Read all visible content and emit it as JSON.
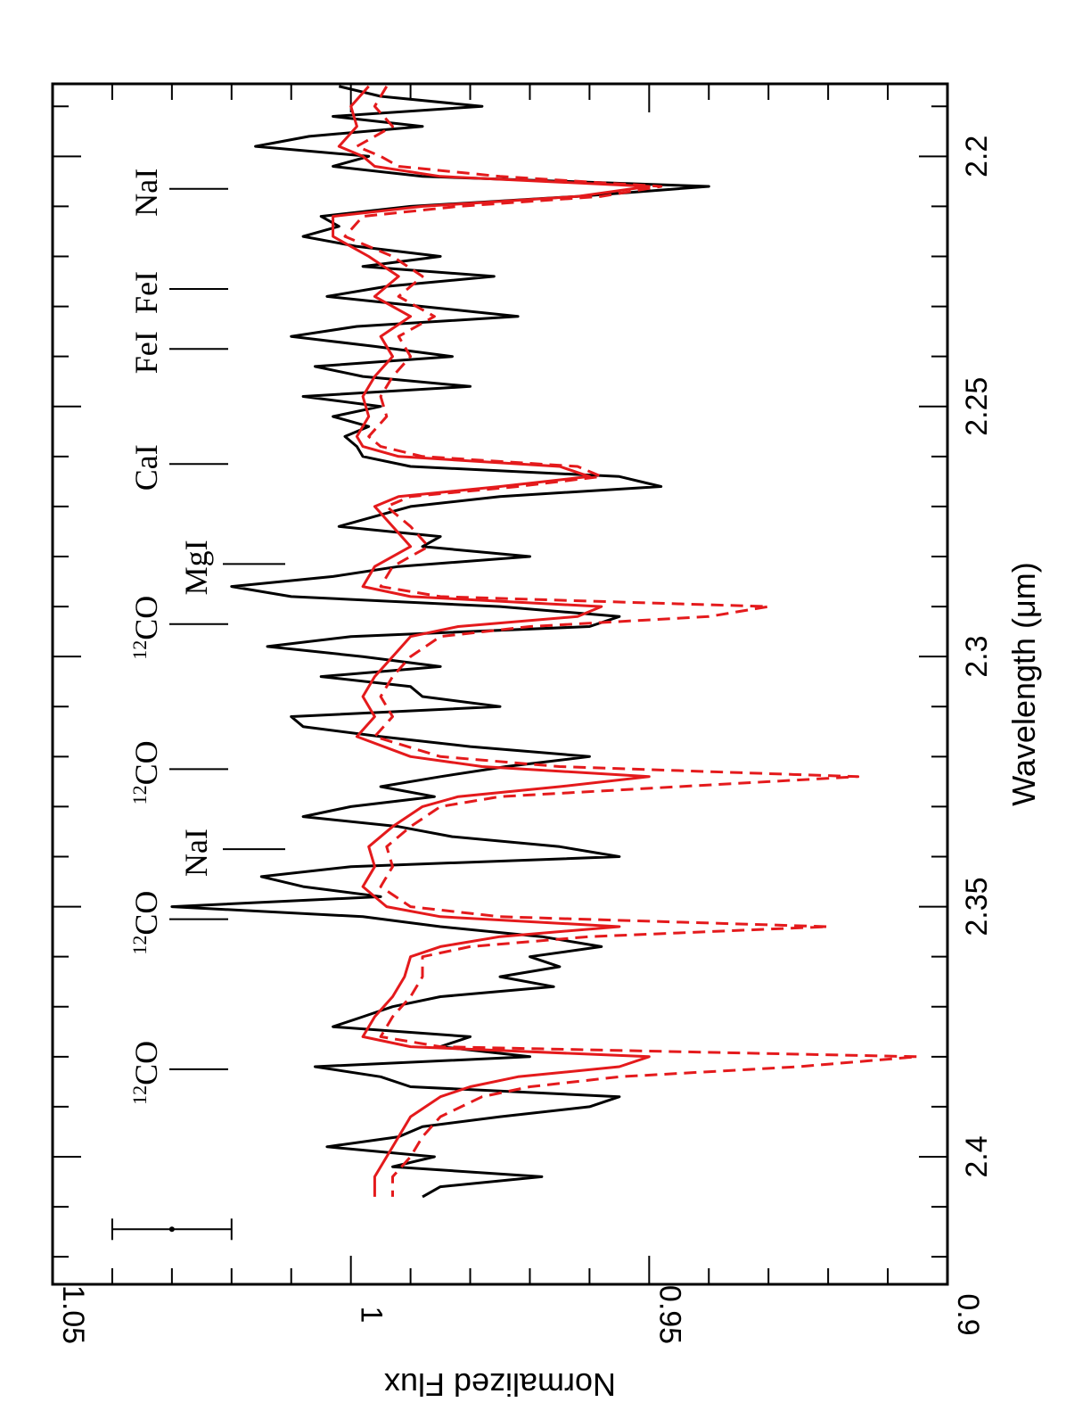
{
  "chart_data": {
    "type": "line",
    "title": "",
    "xlabel": "Wavelength (μm)",
    "ylabel": "Normalized Flux",
    "xlim": [
      2.1855,
      2.4255
    ],
    "ylim": [
      0.9,
      1.05
    ],
    "x_ticks": [
      "2.2",
      "2.25",
      "2.3",
      "2.35",
      "2.4"
    ],
    "y_ticks": [
      "0.9",
      "0.95",
      "1",
      "1.05"
    ],
    "orientation": "rotated 90 degrees (wavelength increases downward, flux decreases to the right)",
    "series": [
      {
        "style": "solid",
        "color": "#000000",
        "x": [
          2.186,
          2.188,
          2.19,
          2.192,
          2.194,
          2.196,
          2.198,
          2.2,
          2.202,
          2.204,
          2.206,
          2.208,
          2.21,
          2.212,
          2.214,
          2.216,
          2.218,
          2.22,
          2.222,
          2.224,
          2.226,
          2.228,
          2.23,
          2.232,
          2.234,
          2.236,
          2.238,
          2.24,
          2.242,
          2.244,
          2.246,
          2.248,
          2.25,
          2.252,
          2.254,
          2.256,
          2.258,
          2.26,
          2.262,
          2.264,
          2.266,
          2.268,
          2.27,
          2.272,
          2.274,
          2.276,
          2.278,
          2.28,
          2.282,
          2.284,
          2.286,
          2.288,
          2.29,
          2.292,
          2.294,
          2.296,
          2.298,
          2.3,
          2.302,
          2.304,
          2.306,
          2.308,
          2.31,
          2.312,
          2.314,
          2.316,
          2.318,
          2.32,
          2.322,
          2.324,
          2.326,
          2.328,
          2.33,
          2.332,
          2.334,
          2.336,
          2.338,
          2.34,
          2.342,
          2.344,
          2.346,
          2.348,
          2.35,
          2.352,
          2.354,
          2.356,
          2.358,
          2.36,
          2.362,
          2.364,
          2.366,
          2.368,
          2.37,
          2.372,
          2.374,
          2.376,
          2.378,
          2.38,
          2.382,
          2.384,
          2.386,
          2.388,
          2.39,
          2.392,
          2.394,
          2.396,
          2.398,
          2.4,
          2.402,
          2.404,
          2.406,
          2.408
        ],
        "y": [
          1.002,
          0.995,
          0.978,
          1.003,
          0.988,
          1.007,
          1.016,
          0.997,
          1.003,
          0.988,
          0.94,
          0.962,
          0.99,
          1.005,
          1.002,
          1.008,
          0.999,
          0.985,
          0.998,
          0.976,
          0.994,
          1.004,
          0.988,
          0.972,
          0.999,
          1.01,
          0.996,
          0.983,
          1.006,
          0.998,
          0.98,
          1.008,
          0.995,
          1.003,
          0.997,
          1.001,
          0.999,
          0.998,
          0.99,
          0.955,
          0.948,
          0.975,
          0.99,
          0.996,
          1.002,
          0.985,
          0.988,
          0.97,
          0.992,
          1.003,
          1.02,
          1.01,
          0.975,
          0.955,
          0.96,
          1.0,
          1.014,
          0.998,
          0.985,
          1.005,
          0.99,
          0.988,
          0.975,
          1.01,
          1.008,
          0.995,
          0.98,
          0.96,
          0.974,
          0.985,
          0.995,
          0.986,
          1.0,
          1.008,
          0.992,
          0.983,
          0.965,
          0.955,
          1.0,
          1.015,
          1.008,
          0.995,
          1.03,
          0.998,
          0.985,
          0.968,
          0.958,
          0.97,
          0.965,
          0.975,
          0.966,
          0.985,
          0.993,
          0.998,
          1.003,
          0.98,
          0.985,
          0.97,
          1.006,
          0.995,
          0.99,
          0.955,
          0.96,
          0.975,
          0.988,
          0.992,
          1.004,
          0.986,
          0.993,
          0.968,
          0.985,
          0.988
        ]
      },
      {
        "style": "solid",
        "color": "#e41a1c",
        "x": [
          2.186,
          2.19,
          2.194,
          2.198,
          2.2,
          2.202,
          2.204,
          2.206,
          2.208,
          2.21,
          2.212,
          2.216,
          2.22,
          2.224,
          2.228,
          2.232,
          2.236,
          2.24,
          2.244,
          2.248,
          2.252,
          2.256,
          2.258,
          2.26,
          2.262,
          2.264,
          2.266,
          2.268,
          2.27,
          2.274,
          2.278,
          2.282,
          2.286,
          2.288,
          2.29,
          2.292,
          2.294,
          2.296,
          2.3,
          2.304,
          2.308,
          2.312,
          2.316,
          2.32,
          2.322,
          2.324,
          2.326,
          2.328,
          2.33,
          2.334,
          2.338,
          2.342,
          2.346,
          2.35,
          2.352,
          2.354,
          2.356,
          2.358,
          2.36,
          2.364,
          2.368,
          2.372,
          2.376,
          2.378,
          2.38,
          2.382,
          2.384,
          2.386,
          2.388,
          2.392,
          2.396,
          2.4,
          2.404,
          2.408
        ],
        "y": [
          0.997,
          1.0,
          0.999,
          1.002,
          0.998,
          0.996,
          0.985,
          0.95,
          0.962,
          0.988,
          1.003,
          1.003,
          0.997,
          0.992,
          0.996,
          0.99,
          0.995,
          0.993,
          0.996,
          0.998,
          0.997,
          0.999,
          0.998,
          0.992,
          0.965,
          0.96,
          0.975,
          0.992,
          0.996,
          0.993,
          0.99,
          0.996,
          0.998,
          0.99,
          0.958,
          0.962,
          0.982,
          0.99,
          0.993,
          0.996,
          0.998,
          0.996,
          0.999,
          0.99,
          0.978,
          0.95,
          0.965,
          0.982,
          0.988,
          0.993,
          0.997,
          0.996,
          0.998,
          0.994,
          0.985,
          0.955,
          0.975,
          0.985,
          0.99,
          0.991,
          0.993,
          0.996,
          0.998,
          0.99,
          0.95,
          0.955,
          0.972,
          0.98,
          0.985,
          0.99,
          0.992,
          0.994,
          0.996,
          0.996
        ]
      },
      {
        "style": "dashed",
        "color": "#e41a1c",
        "x": [
          2.186,
          2.19,
          2.194,
          2.198,
          2.2,
          2.202,
          2.204,
          2.206,
          2.208,
          2.21,
          2.212,
          2.216,
          2.22,
          2.224,
          2.228,
          2.232,
          2.236,
          2.24,
          2.244,
          2.248,
          2.252,
          2.256,
          2.258,
          2.26,
          2.262,
          2.264,
          2.266,
          2.268,
          2.27,
          2.274,
          2.278,
          2.282,
          2.286,
          2.288,
          2.29,
          2.292,
          2.294,
          2.296,
          2.3,
          2.304,
          2.308,
          2.312,
          2.316,
          2.32,
          2.322,
          2.324,
          2.326,
          2.328,
          2.33,
          2.334,
          2.338,
          2.342,
          2.346,
          2.35,
          2.352,
          2.354,
          2.356,
          2.358,
          2.36,
          2.364,
          2.368,
          2.372,
          2.376,
          2.378,
          2.38,
          2.382,
          2.384,
          2.386,
          2.388,
          2.392,
          2.396,
          2.4,
          2.404,
          2.408
        ],
        "y": [
          0.994,
          0.996,
          0.993,
          0.999,
          0.995,
          0.992,
          0.975,
          0.948,
          0.958,
          0.982,
          0.998,
          1.001,
          0.993,
          0.988,
          0.992,
          0.986,
          0.992,
          0.99,
          0.993,
          0.995,
          0.994,
          0.997,
          0.995,
          0.988,
          0.962,
          0.958,
          0.972,
          0.99,
          0.994,
          0.99,
          0.987,
          0.993,
          0.995,
          0.985,
          0.93,
          0.94,
          0.97,
          0.985,
          0.99,
          0.993,
          0.995,
          0.993,
          0.996,
          0.985,
          0.965,
          0.915,
          0.945,
          0.975,
          0.985,
          0.99,
          0.994,
          0.993,
          0.995,
          0.99,
          0.975,
          0.92,
          0.96,
          0.98,
          0.988,
          0.988,
          0.99,
          0.993,
          0.995,
          0.985,
          0.905,
          0.925,
          0.955,
          0.97,
          0.978,
          0.985,
          0.988,
          0.99,
          0.993,
          0.993
        ]
      }
    ],
    "line_ids": [
      {
        "label": "NaI",
        "x": 2.2065
      },
      {
        "label": "FeI",
        "x": 2.2265
      },
      {
        "label": "FeI",
        "x": 2.2385
      },
      {
        "label": "CaI",
        "x": 2.2615
      },
      {
        "label": "MgI",
        "x": 2.2815
      },
      {
        "label": "CO",
        "sup": "12",
        "x": 2.2935
      },
      {
        "label": "CO",
        "sup": "12",
        "x": 2.3225
      },
      {
        "label": "NaI",
        "x": 2.3385
      },
      {
        "label": "CO",
        "sup": "12",
        "x": 2.3525
      },
      {
        "label": "CO",
        "sup": "12",
        "x": 2.3825
      }
    ],
    "error_bar": {
      "x": 2.4145,
      "y": 1.03,
      "half_width": 0.01
    }
  }
}
